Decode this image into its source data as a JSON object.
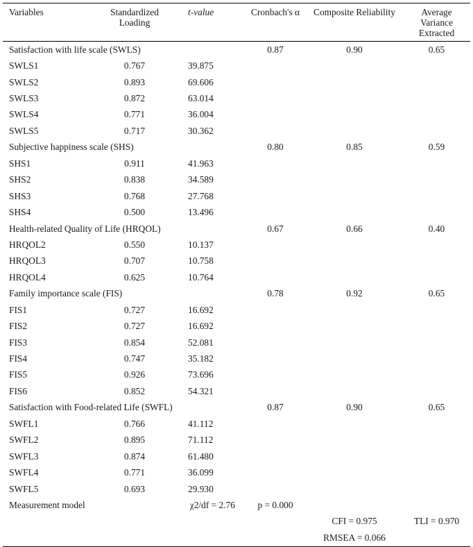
{
  "headers": {
    "variables": "Variables",
    "loading": "Standardized Loading",
    "t_value": "t-value",
    "alpha": "Cronbach's α",
    "cr": "Composite Reliability",
    "ave": "Average Variance Extracted"
  },
  "groups": [
    {
      "name": "Satisfaction with life scale (SWLS)",
      "alpha": "0.87",
      "cr": "0.90",
      "ave": "0.65",
      "items": [
        [
          "SWLS1",
          "0.767",
          "39.875"
        ],
        [
          "SWLS2",
          "0.893",
          "69.606"
        ],
        [
          "SWLS3",
          "0.872",
          "63.014"
        ],
        [
          "SWLS4",
          "0.771",
          "36.004"
        ],
        [
          "SWLS5",
          "0.717",
          "30.362"
        ]
      ]
    },
    {
      "name": "Subjective happiness scale (SHS)",
      "alpha": "0.80",
      "cr": "0.85",
      "ave": "0.59",
      "items": [
        [
          "SHS1",
          "0.911",
          "41.963"
        ],
        [
          "SHS2",
          "0.838",
          "34.589"
        ],
        [
          "SHS3",
          "0.768",
          "27.768"
        ],
        [
          "SHS4",
          "0.500",
          "13.496"
        ]
      ]
    },
    {
      "name": "Health-related Quality of Life (HRQOL)",
      "alpha": "0.67",
      "cr": "0.66",
      "ave": "0.40",
      "items": [
        [
          "HRQOL2",
          "0.550",
          "10.137"
        ],
        [
          "HRQOL3",
          "0.707",
          "10.758"
        ],
        [
          "HRQOL4",
          "0.625",
          "10.764"
        ]
      ]
    },
    {
      "name": "Family importance scale (FIS)",
      "alpha": "0.78",
      "cr": "0.92",
      "ave": "0.65",
      "items": [
        [
          "FIS1",
          "0.727",
          "16.692"
        ],
        [
          "FIS2",
          "0.727",
          "16.692"
        ],
        [
          "FIS3",
          "0.854",
          "52.081"
        ],
        [
          "FIS4",
          "0.747",
          "35.182"
        ],
        [
          "FIS5",
          "0.926",
          "73.696"
        ],
        [
          "FIS6",
          "0.852",
          "54.321"
        ]
      ]
    },
    {
      "name": "Satisfaction with Food-related Life (SWFL)",
      "alpha": "0.87",
      "cr": "0.90",
      "ave": "0.65",
      "items": [
        [
          "SWFL1",
          "0.766",
          "41.112"
        ],
        [
          "SWFL2",
          "0.895",
          "71.112"
        ],
        [
          "SWFL3",
          "0.874",
          "61.480"
        ],
        [
          "SWFL4",
          "0.771",
          "36.099"
        ],
        [
          "SWFL5",
          "0.693",
          "29.930"
        ]
      ]
    }
  ],
  "measurement_model": {
    "label": "Measurement model",
    "chi_text": "χ2/df = 2.76",
    "p_text": "p = 0.000",
    "cfi": "CFI = 0.975",
    "tli": "TLI = 0.970",
    "rmsea": "RMSEA = 0.066"
  }
}
